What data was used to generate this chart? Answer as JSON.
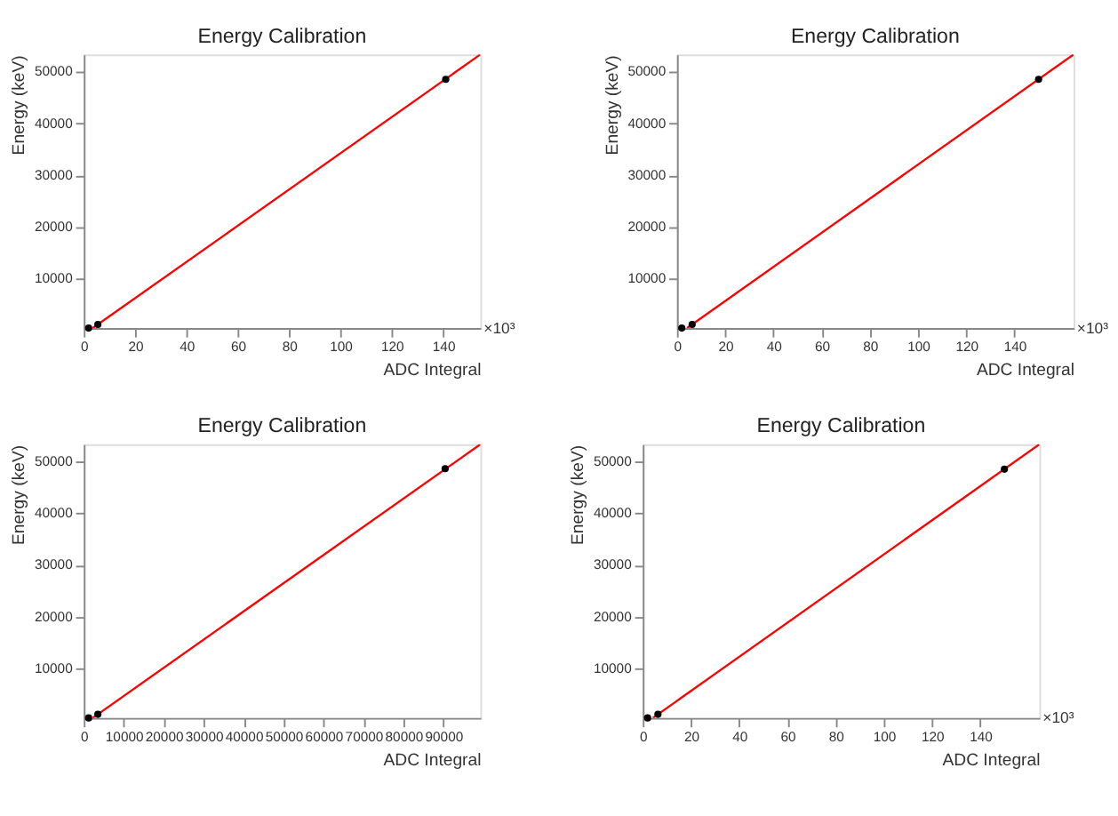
{
  "chart_data": [
    {
      "type": "scatter",
      "title": "Energy Calibration",
      "xlabel": "ADC Integral",
      "ylabel": "Energy (keV)",
      "xlim": [
        0,
        154.5
      ],
      "ylim": [
        500,
        53300
      ],
      "xticks": [
        0,
        20,
        40,
        60,
        80,
        100,
        120,
        140
      ],
      "yticks": [
        10000,
        20000,
        30000,
        40000,
        50000
      ],
      "grid": false,
      "annotations": [
        "×10³"
      ],
      "series": [
        {
          "type": "line",
          "color": "#ff0000",
          "x": [
            3.5,
            154.5
          ],
          "values": [
            500,
            53300
          ]
        },
        {
          "color": "#000000",
          "marker": "circle",
          "x": [
            1.9,
            5.5,
            141
          ],
          "values": [
            500,
            1200,
            48500
          ]
        }
      ]
    },
    {
      "type": "scatter",
      "title": "Energy Calibration",
      "xlabel": "ADC Integral",
      "ylabel": "Energy (keV)",
      "xlim": [
        0,
        164.5
      ],
      "ylim": [
        500,
        53300
      ],
      "xticks": [
        0,
        20,
        40,
        60,
        80,
        100,
        120,
        140
      ],
      "yticks": [
        10000,
        20000,
        30000,
        40000,
        50000
      ],
      "grid": false,
      "annotations": [
        "×10³"
      ],
      "series": [
        {
          "type": "line",
          "color": "#ff0000",
          "x": [
            4.2,
            164.5
          ],
          "values": [
            500,
            53300
          ]
        },
        {
          "color": "#000000",
          "marker": "circle",
          "x": [
            2,
            6.3,
            150
          ],
          "values": [
            500,
            1200,
            48500
          ]
        }
      ]
    },
    {
      "type": "scatter",
      "title": "Energy Calibration",
      "xlabel": "ADC Integral",
      "ylabel": "Energy (keV)",
      "xlim": [
        0,
        99250
      ],
      "ylim": [
        500,
        53300
      ],
      "xticks": [
        0,
        10000,
        20000,
        30000,
        40000,
        50000,
        60000,
        70000,
        80000,
        90000
      ],
      "yticks": [
        10000,
        20000,
        30000,
        40000,
        50000
      ],
      "grid": false,
      "series": [
        {
          "type": "line",
          "color": "#ff0000",
          "x": [
            2240,
            99250
          ],
          "values": [
            500,
            53300
          ]
        },
        {
          "color": "#000000",
          "marker": "circle",
          "x": [
            1220,
            3530,
            90440
          ],
          "values": [
            500,
            1200,
            48600
          ]
        }
      ]
    },
    {
      "type": "scatter",
      "title": "Energy Calibration",
      "xlabel": "ADC Integral",
      "ylabel": "Energy (keV)",
      "xlim": [
        0,
        164.5
      ],
      "ylim": [
        500,
        53300
      ],
      "xticks": [
        0,
        20,
        40,
        60,
        80,
        100,
        120,
        140
      ],
      "yticks": [
        10000,
        20000,
        30000,
        40000,
        50000
      ],
      "grid": false,
      "annotations": [
        "×10³"
      ],
      "series": [
        {
          "type": "line",
          "color": "#ff0000",
          "x": [
            4.2,
            164.5
          ],
          "values": [
            500,
            53300
          ]
        },
        {
          "color": "#000000",
          "marker": "circle",
          "x": [
            2,
            6.3,
            150
          ],
          "values": [
            500,
            1200,
            48500
          ]
        }
      ]
    }
  ]
}
